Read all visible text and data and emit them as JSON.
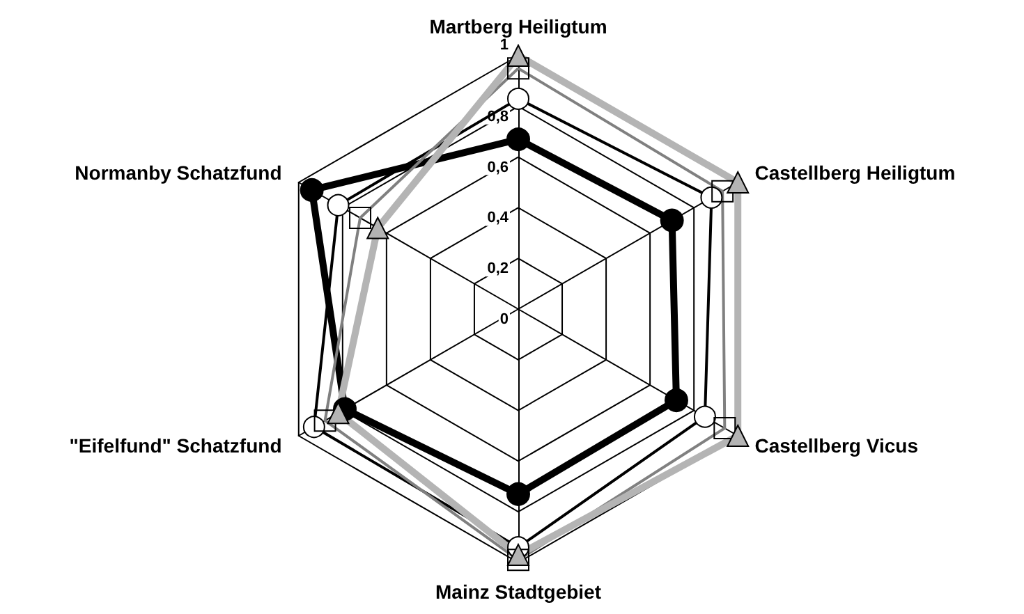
{
  "chart_data": {
    "type": "radar",
    "categories": [
      "Martberg Heiligtum",
      "Castellberg Heiligtum",
      "Castellberg Vicus",
      "Mainz Stadtgebiet",
      "\"Eifelfund\" Schatzfund",
      "Normanby Schatzfund"
    ],
    "ylim": [
      0,
      1
    ],
    "yticks": [
      0,
      {
        "value": 0.2,
        "label": "0,2"
      },
      {
        "value": 0.4,
        "label": "0,4"
      },
      {
        "value": 0.6,
        "label": "0,6"
      },
      {
        "value": 0.8,
        "label": "0,8"
      },
      1
    ],
    "series": [
      {
        "color": "#000000",
        "marker": "circle",
        "values": [
          0.67,
          0.7,
          0.72,
          0.73,
          0.79,
          0.94
        ]
      },
      {
        "color": "#000000",
        "marker": "circle",
        "values": [
          0.83,
          0.88,
          0.85,
          0.94,
          0.93,
          0.82
        ]
      },
      {
        "color": "#808080",
        "marker": "square",
        "values": [
          0.95,
          0.93,
          0.94,
          0.99,
          0.88,
          0.72
        ]
      },
      {
        "color": "#b4b4b4",
        "marker": "triangle",
        "values": [
          1.0,
          1.0,
          1.0,
          0.97,
          0.82,
          0.64
        ]
      }
    ]
  }
}
